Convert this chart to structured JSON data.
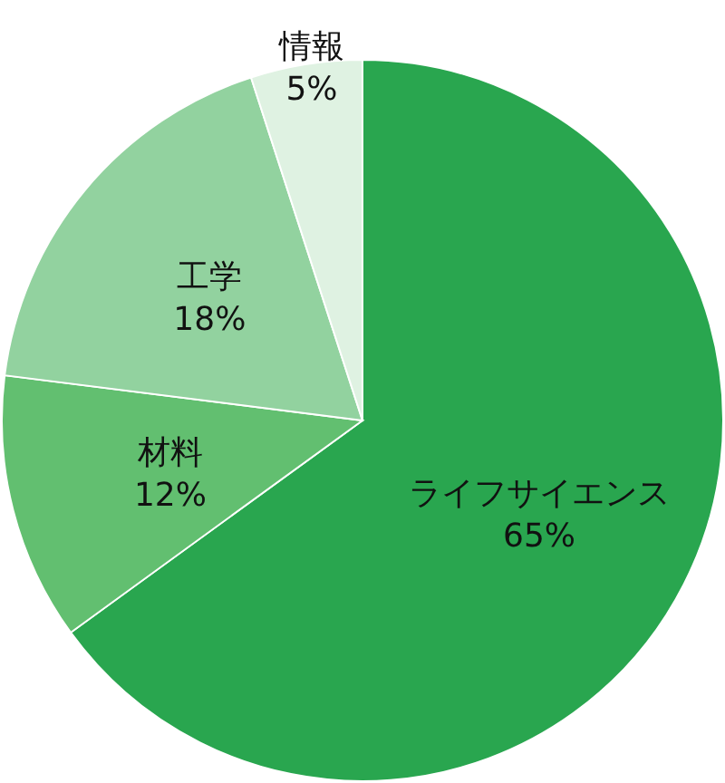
{
  "chart_data": {
    "type": "pie",
    "categories": [
      "ライフサイエンス",
      "材料",
      "工学",
      "情報"
    ],
    "values": [
      65,
      12,
      18,
      5
    ],
    "value_labels": [
      "65%",
      "12%",
      "18%",
      "5%"
    ],
    "colors": [
      "#29a64f",
      "#62bf70",
      "#92d29f",
      "#dff2e2"
    ]
  }
}
